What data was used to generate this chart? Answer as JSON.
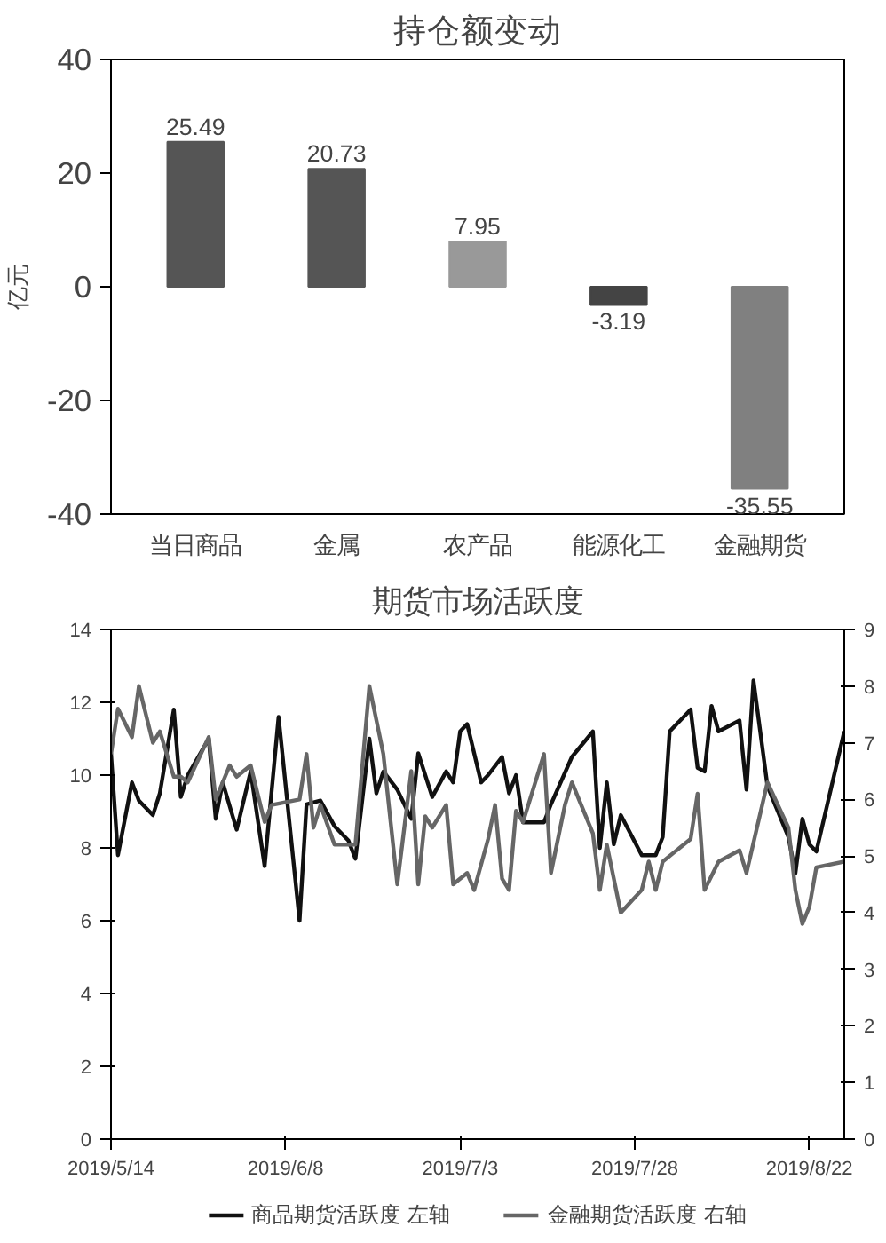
{
  "chart_data": [
    {
      "type": "bar",
      "title": "持仓额变动",
      "ylabel": "亿元",
      "categories": [
        "当日商品",
        "金属",
        "农产品",
        "能源化工",
        "金融期货"
      ],
      "values": [
        25.49,
        20.73,
        7.95,
        -3.19,
        -35.55
      ],
      "colors": [
        "#555555",
        "#555555",
        "#999999",
        "#444444",
        "#808080"
      ],
      "ylim": [
        -40,
        40
      ],
      "yticks": [
        -40,
        -20,
        0,
        20,
        40
      ],
      "data_labels": true
    },
    {
      "type": "line",
      "title": "期货市场活跃度",
      "xlim": [
        "2019-05-14",
        "2019-08-27"
      ],
      "xticks": [
        {
          "value": "2019-05-14",
          "label": "2019/5/14"
        },
        {
          "value": "2019-06-08",
          "label": "2019/6/8"
        },
        {
          "value": "2019-07-03",
          "label": "2019/7/3"
        },
        {
          "value": "2019-07-28",
          "label": "2019/7/28"
        },
        {
          "value": "2019-08-22",
          "label": "2019/8/22"
        }
      ],
      "ylim": [
        0,
        14
      ],
      "yticks": [
        0,
        2,
        4,
        6,
        8,
        10,
        12,
        14
      ],
      "y2lim": [
        0,
        9
      ],
      "y2ticks": [
        0,
        1,
        2,
        3,
        4,
        5,
        6,
        7,
        8,
        9
      ],
      "legend": "bottom",
      "line_style": "solid",
      "series": [
        {
          "name": "商品期货活跃度 左轴",
          "color": "#111111",
          "x": [
            "2019-05-14",
            "2019-05-15",
            "2019-05-17",
            "2019-05-18",
            "2019-05-20",
            "2019-05-21",
            "2019-05-23",
            "2019-05-24",
            "2019-05-25",
            "2019-05-28",
            "2019-05-29",
            "2019-05-30",
            "2019-06-01",
            "2019-06-03",
            "2019-06-05",
            "2019-06-07",
            "2019-06-10",
            "2019-06-11",
            "2019-06-13",
            "2019-06-15",
            "2019-06-17",
            "2019-06-18",
            "2019-06-20",
            "2019-06-21",
            "2019-06-22",
            "2019-06-24",
            "2019-06-26",
            "2019-06-27",
            "2019-06-29",
            "2019-07-01",
            "2019-07-02",
            "2019-07-03",
            "2019-07-04",
            "2019-07-06",
            "2019-07-07",
            "2019-07-09",
            "2019-07-10",
            "2019-07-11",
            "2019-07-12",
            "2019-07-15",
            "2019-07-16",
            "2019-07-19",
            "2019-07-22",
            "2019-07-23",
            "2019-07-24",
            "2019-07-25",
            "2019-07-26",
            "2019-07-29",
            "2019-07-31",
            "2019-08-01",
            "2019-08-02",
            "2019-08-05",
            "2019-08-06",
            "2019-08-07",
            "2019-08-08",
            "2019-08-09",
            "2019-08-12",
            "2019-08-13",
            "2019-08-14",
            "2019-08-16",
            "2019-08-19",
            "2019-08-20",
            "2019-08-21",
            "2019-08-22",
            "2019-08-23",
            "2019-08-27"
          ],
          "values": [
            10.6,
            7.8,
            9.8,
            9.3,
            8.9,
            9.5,
            11.8,
            9.4,
            10.0,
            11.0,
            8.8,
            9.8,
            8.5,
            10.1,
            7.5,
            11.6,
            6.0,
            9.2,
            9.3,
            8.6,
            8.2,
            7.7,
            11.0,
            9.5,
            10.1,
            9.6,
            8.8,
            10.6,
            9.4,
            10.1,
            9.8,
            11.2,
            11.4,
            9.8,
            10.0,
            10.5,
            9.5,
            10.0,
            8.7,
            8.7,
            9.2,
            10.5,
            11.2,
            8.0,
            9.8,
            8.1,
            8.9,
            7.8,
            7.8,
            8.3,
            11.2,
            11.8,
            10.2,
            10.1,
            11.9,
            11.2,
            11.5,
            9.6,
            12.6,
            9.7,
            8.3,
            7.3,
            8.8,
            8.1,
            7.9,
            11.2
          ]
        },
        {
          "name": "金融期货活跃度 右轴",
          "color": "#666666",
          "axis": "y2",
          "x": [
            "2019-05-14",
            "2019-05-15",
            "2019-05-17",
            "2019-05-18",
            "2019-05-20",
            "2019-05-21",
            "2019-05-23",
            "2019-05-24",
            "2019-05-25",
            "2019-05-28",
            "2019-05-29",
            "2019-05-31",
            "2019-06-01",
            "2019-06-03",
            "2019-06-05",
            "2019-06-06",
            "2019-06-10",
            "2019-06-11",
            "2019-06-12",
            "2019-06-13",
            "2019-06-15",
            "2019-06-18",
            "2019-06-20",
            "2019-06-22",
            "2019-06-24",
            "2019-06-26",
            "2019-06-27",
            "2019-06-28",
            "2019-06-29",
            "2019-07-01",
            "2019-07-02",
            "2019-07-04",
            "2019-07-05",
            "2019-07-07",
            "2019-07-08",
            "2019-07-09",
            "2019-07-10",
            "2019-07-11",
            "2019-07-12",
            "2019-07-15",
            "2019-07-16",
            "2019-07-18",
            "2019-07-19",
            "2019-07-22",
            "2019-07-23",
            "2019-07-24",
            "2019-07-26",
            "2019-07-29",
            "2019-07-30",
            "2019-07-31",
            "2019-08-01",
            "2019-08-05",
            "2019-08-06",
            "2019-08-07",
            "2019-08-09",
            "2019-08-12",
            "2019-08-13",
            "2019-08-16",
            "2019-08-19",
            "2019-08-20",
            "2019-08-21",
            "2019-08-22",
            "2019-08-23",
            "2019-08-27"
          ],
          "values": [
            6.8,
            7.6,
            7.1,
            8.0,
            7.0,
            7.2,
            6.4,
            6.4,
            6.3,
            7.1,
            6.0,
            6.6,
            6.4,
            6.6,
            5.6,
            5.9,
            6.0,
            6.8,
            5.5,
            5.9,
            5.2,
            5.2,
            8.0,
            6.8,
            4.5,
            6.5,
            4.5,
            5.7,
            5.5,
            5.9,
            4.5,
            4.7,
            4.4,
            5.3,
            5.9,
            4.6,
            4.4,
            5.8,
            5.6,
            6.8,
            4.7,
            5.9,
            6.3,
            5.4,
            4.4,
            5.2,
            4.0,
            4.4,
            4.9,
            4.4,
            4.9,
            5.3,
            6.1,
            4.4,
            4.9,
            5.1,
            4.7,
            6.3,
            5.5,
            4.4,
            3.8,
            4.1,
            4.8,
            4.9
          ]
        }
      ]
    }
  ]
}
